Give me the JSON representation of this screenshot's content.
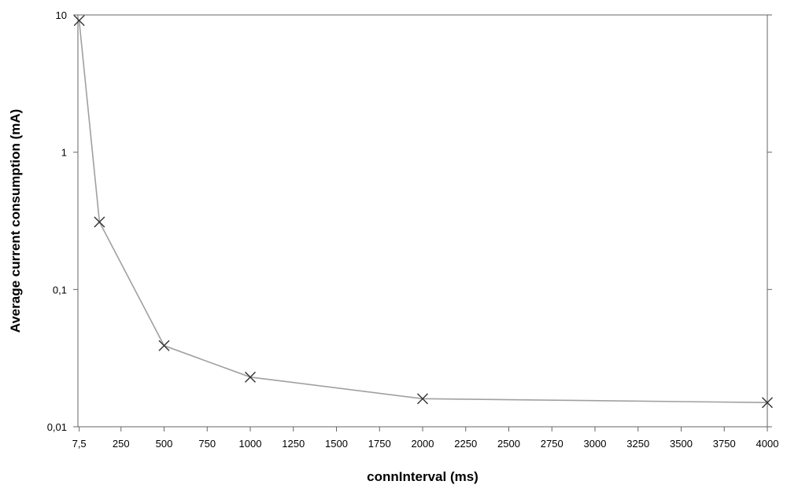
{
  "chart_data": {
    "type": "line",
    "title": "",
    "xlabel": "connInterval (ms)",
    "ylabel": "Average current consumption  (mA)",
    "x_scale": "linear",
    "y_scale": "log",
    "xlim": [
      0,
      4000
    ],
    "ylim": [
      0.01,
      10
    ],
    "grid": false,
    "legend": "none",
    "line_color": "#a0a0a0",
    "marker": "x",
    "marker_color": "#333333",
    "x_ticks": [
      {
        "value": 7.5,
        "label": "7,5"
      },
      {
        "value": 250,
        "label": "250"
      },
      {
        "value": 500,
        "label": "500"
      },
      {
        "value": 750,
        "label": "750"
      },
      {
        "value": 1000,
        "label": "1000"
      },
      {
        "value": 1250,
        "label": "1250"
      },
      {
        "value": 1500,
        "label": "1500"
      },
      {
        "value": 1750,
        "label": "1750"
      },
      {
        "value": 2000,
        "label": "2000"
      },
      {
        "value": 2250,
        "label": "2250"
      },
      {
        "value": 2500,
        "label": "2500"
      },
      {
        "value": 2750,
        "label": "2750"
      },
      {
        "value": 3000,
        "label": "3000"
      },
      {
        "value": 3250,
        "label": "3250"
      },
      {
        "value": 3500,
        "label": "3500"
      },
      {
        "value": 3750,
        "label": "3750"
      },
      {
        "value": 4000,
        "label": "4000"
      }
    ],
    "y_ticks": [
      {
        "value": 0.01,
        "label": "0,01"
      },
      {
        "value": 0.1,
        "label": "0,1"
      },
      {
        "value": 1,
        "label": "1"
      },
      {
        "value": 10,
        "label": "10"
      }
    ],
    "series": [
      {
        "x": [
          7.5,
          125,
          500,
          1000,
          2000,
          4000
        ],
        "y": [
          9.1,
          0.31,
          0.039,
          0.023,
          0.016,
          0.015
        ]
      }
    ]
  }
}
